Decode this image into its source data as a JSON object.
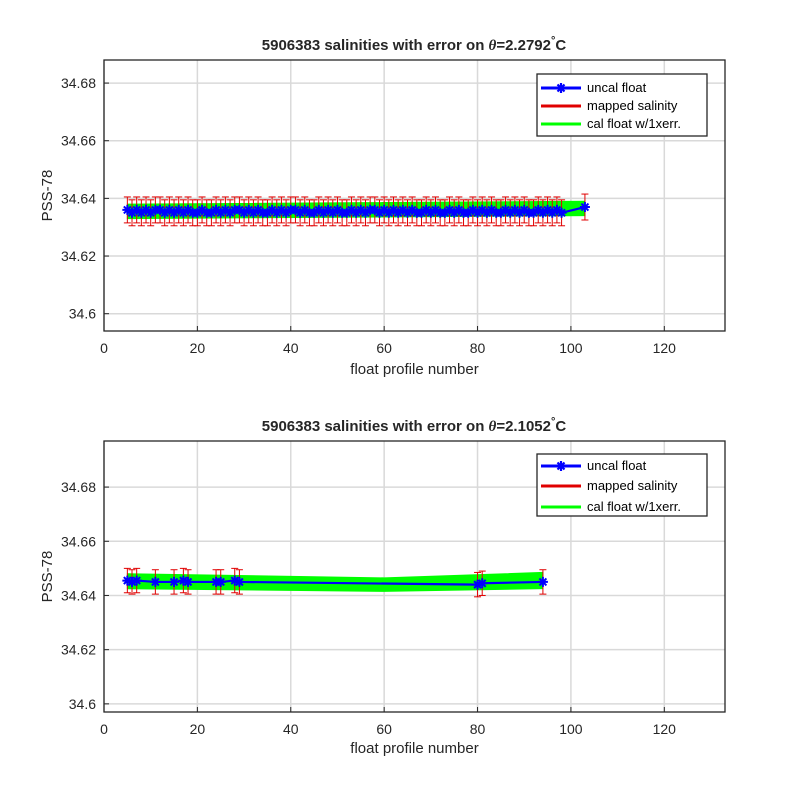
{
  "chart_data": [
    {
      "type": "line",
      "title": {
        "prefix": "5906383 salinities with error on ",
        "theta": "θ",
        "value": "=2.2792",
        "degree": "°",
        "unit": "C"
      },
      "xlabel": "float profile number",
      "ylabel": "PSS-78",
      "xlim": [
        0,
        133
      ],
      "ylim": [
        34.594,
        34.688
      ],
      "xticks": [
        0,
        20,
        40,
        60,
        80,
        100,
        120
      ],
      "yticks": [
        34.6,
        34.62,
        34.64,
        34.66,
        34.68
      ],
      "ytick_labels": [
        "34.6",
        "34.62",
        "34.64",
        "34.66",
        "34.68"
      ],
      "grid": true,
      "legend_position": "top-right",
      "legend": [
        "uncal float",
        "mapped salinity",
        "cal float w/1xerr."
      ],
      "colors": {
        "uncal": "#0000ff",
        "mapped": "#e00000",
        "cal": "#00ff00"
      },
      "uncal": {
        "x": [
          5,
          6,
          7,
          8,
          9,
          10,
          11,
          12,
          13,
          14,
          15,
          16,
          17,
          18,
          19,
          20,
          21,
          22,
          23,
          24,
          25,
          26,
          27,
          28,
          29,
          30,
          31,
          32,
          33,
          34,
          35,
          36,
          37,
          38,
          39,
          40,
          41,
          42,
          43,
          44,
          45,
          46,
          47,
          48,
          49,
          50,
          51,
          52,
          53,
          54,
          55,
          56,
          57,
          58,
          59,
          60,
          61,
          62,
          63,
          64,
          65,
          66,
          67,
          68,
          69,
          70,
          71,
          72,
          73,
          74,
          75,
          76,
          77,
          78,
          79,
          80,
          81,
          82,
          83,
          84,
          85,
          86,
          87,
          88,
          89,
          90,
          91,
          92,
          93,
          94,
          95,
          96,
          97,
          98,
          103
        ],
        "y": [
          34.636,
          34.635,
          34.636,
          34.635,
          34.636,
          34.635,
          34.636,
          34.636,
          34.635,
          34.636,
          34.635,
          34.636,
          34.635,
          34.636,
          34.635,
          34.635,
          34.636,
          34.635,
          34.635,
          34.636,
          34.635,
          34.636,
          34.635,
          34.636,
          34.636,
          34.635,
          34.636,
          34.635,
          34.636,
          34.635,
          34.635,
          34.636,
          34.635,
          34.636,
          34.635,
          34.636,
          34.636,
          34.635,
          34.636,
          34.635,
          34.635,
          34.636,
          34.635,
          34.636,
          34.635,
          34.636,
          34.635,
          34.635,
          34.636,
          34.635,
          34.636,
          34.635,
          34.636,
          34.636,
          34.635,
          34.636,
          34.635,
          34.636,
          34.635,
          34.636,
          34.635,
          34.636,
          34.635,
          34.635,
          34.636,
          34.635,
          34.636,
          34.635,
          34.635,
          34.636,
          34.635,
          34.636,
          34.635,
          34.635,
          34.636,
          34.635,
          34.636,
          34.635,
          34.636,
          34.635,
          34.635,
          34.636,
          34.635,
          34.636,
          34.635,
          34.636,
          34.635,
          34.635,
          34.636,
          34.635,
          34.636,
          34.635,
          34.636,
          34.635,
          34.637
        ]
      },
      "mapped_error": 0.0045,
      "cal_band": {
        "x": [
          5,
          103
        ],
        "lower": [
          34.633,
          34.634
        ],
        "upper": [
          34.638,
          34.639
        ]
      }
    },
    {
      "type": "line",
      "title": {
        "prefix": "5906383 salinities with error on ",
        "theta": "θ",
        "value": "=2.1052",
        "degree": "°",
        "unit": "C"
      },
      "xlabel": "float profile number",
      "ylabel": "PSS-78",
      "xlim": [
        0,
        133
      ],
      "ylim": [
        34.597,
        34.697
      ],
      "xticks": [
        0,
        20,
        40,
        60,
        80,
        100,
        120
      ],
      "yticks": [
        34.6,
        34.62,
        34.64,
        34.66,
        34.68
      ],
      "ytick_labels": [
        "34.6",
        "34.62",
        "34.64",
        "34.66",
        "34.68"
      ],
      "grid": true,
      "legend_position": "top-right",
      "legend": [
        "uncal float",
        "mapped salinity",
        "cal float w/1xerr."
      ],
      "colors": {
        "uncal": "#0000ff",
        "mapped": "#e00000",
        "cal": "#00ff00"
      },
      "uncal": {
        "x": [
          5,
          6,
          7,
          11,
          15,
          17,
          18,
          24,
          25,
          28,
          29,
          80,
          81,
          94
        ],
        "y": [
          34.6455,
          34.645,
          34.6455,
          34.645,
          34.645,
          34.6455,
          34.645,
          34.645,
          34.645,
          34.6455,
          34.645,
          34.644,
          34.6445,
          34.645
        ]
      },
      "mapped_error": 0.0045,
      "cal_band": {
        "x": [
          5,
          60,
          94
        ],
        "lower": [
          34.6425,
          34.6415,
          34.6425
        ],
        "upper": [
          34.648,
          34.6465,
          34.6485
        ]
      }
    }
  ]
}
